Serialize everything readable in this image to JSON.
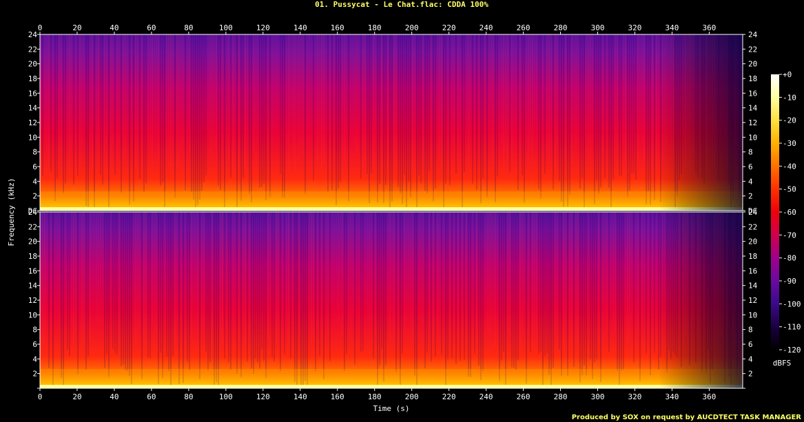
{
  "chart_data": {
    "type": "heatmap",
    "title": "01. Pussycat - Le Chat.flac: CDDA 100%",
    "xlabel": "Time (s)",
    "ylabel": "Frequency (kHz)",
    "x_ticks": [
      0,
      20,
      40,
      60,
      80,
      100,
      120,
      140,
      160,
      180,
      200,
      220,
      240,
      260,
      280,
      300,
      320,
      340,
      360
    ],
    "xlim": [
      0,
      378
    ],
    "channels": [
      {
        "y_ticks": [
          "DC",
          "2",
          "4",
          "6",
          "8",
          "10",
          "12",
          "14",
          "16",
          "18",
          "20",
          "22",
          "24"
        ],
        "ylim": [
          0,
          24
        ]
      },
      {
        "y_ticks": [
          "",
          "2",
          "4",
          "6",
          "8",
          "10",
          "12",
          "14",
          "16",
          "18",
          "20",
          "22",
          "24"
        ],
        "ylim": [
          0,
          24
        ]
      }
    ],
    "colorbar": {
      "label": "dBFS",
      "ticks": [
        "+0",
        "-10",
        "-20",
        "-30",
        "-40",
        "-50",
        "-60",
        "-70",
        "-80",
        "-90",
        "-100",
        "-110",
        "-120"
      ],
      "range": [
        -120,
        0
      ],
      "colors": [
        "#000000",
        "#1a0040",
        "#3a0a8a",
        "#6a0aa0",
        "#a0008a",
        "#d0004a",
        "#f0000a",
        "#ff3000",
        "#ff7000",
        "#ffb000",
        "#ffe040",
        "#ffffa0",
        "#ffffff"
      ]
    },
    "footer": "Produced by SOX on request by AUCDTECT TASK MANAGER"
  }
}
